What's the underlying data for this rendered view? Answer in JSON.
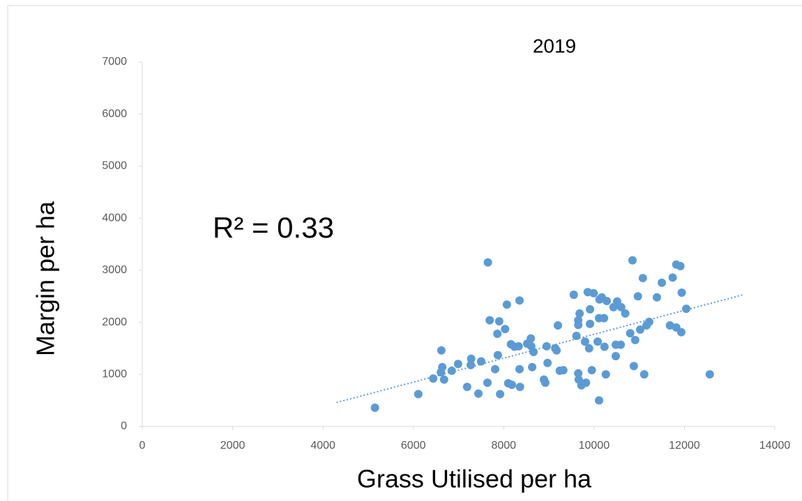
{
  "chart_data": {
    "type": "scatter",
    "title": "2019",
    "x_label": "Grass Utilised per ha",
    "y_label": "Margin per ha",
    "annotation": "R² = 0.33",
    "color": "#5b9bd5",
    "trend_color": "#5b9bd5",
    "xlim": [
      0,
      14000
    ],
    "xticks": [
      0,
      2000,
      4000,
      6000,
      8000,
      10000,
      12000,
      14000
    ],
    "ylim": [
      0,
      7000
    ],
    "yticks": [
      0,
      1000,
      2000,
      3000,
      4000,
      5000,
      6000,
      7000
    ],
    "trendline": {
      "x": [
        4300,
        13300
      ],
      "y": [
        460,
        2530
      ]
    },
    "x": [
      5150,
      6110,
      6620,
      6640,
      6610,
      6680,
      6440,
      6850,
      6990,
      7190,
      7280,
      7270,
      7440,
      7500,
      7640,
      7650,
      7690,
      7810,
      7870,
      7860,
      7900,
      7920,
      8030,
      8070,
      8100,
      8180,
      8160,
      8240,
      8330,
      8350,
      8350,
      8360,
      8520,
      8600,
      8610,
      8660,
      8630,
      8890,
      8920,
      8950,
      8970,
      9140,
      9200,
      9170,
      9240,
      9320,
      9550,
      9610,
      9650,
      9650,
      9650,
      9660,
      9680,
      9720,
      9820,
      9800,
      9860,
      9890,
      9910,
      9910,
      9950,
      9990,
      10080,
      10110,
      10120,
      10110,
      10170,
      10230,
      10220,
      10260,
      10280,
      10430,
      10480,
      10480,
      10510,
      10590,
      10600,
      10690,
      10800,
      10850,
      10880,
      10910,
      10970,
      11020,
      11080,
      11110,
      11160,
      11220,
      11390,
      11500,
      11680,
      11740,
      11820,
      11820,
      11910,
      11930,
      11940,
      12040,
      12560
    ],
    "y": [
      360,
      620,
      1460,
      1140,
      1040,
      900,
      920,
      1070,
      1200,
      760,
      1300,
      1180,
      630,
      1250,
      840,
      3150,
      2040,
      1100,
      1370,
      1780,
      2020,
      620,
      1870,
      2340,
      830,
      800,
      1580,
      1530,
      1540,
      2420,
      1100,
      760,
      1590,
      1690,
      1540,
      1430,
      1140,
      900,
      840,
      1540,
      1220,
      1500,
      1940,
      1460,
      1070,
      1080,
      2530,
      1740,
      2040,
      1950,
      1020,
      900,
      2170,
      790,
      840,
      1630,
      2580,
      1500,
      2250,
      1970,
      1080,
      2560,
      1630,
      500,
      2440,
      2080,
      2480,
      1530,
      2080,
      1000,
      2410,
      2290,
      1570,
      1350,
      2400,
      1570,
      2290,
      2170,
      1790,
      3190,
      1160,
      1660,
      2500,
      1860,
      2850,
      1000,
      1940,
      2010,
      2480,
      2760,
      1940,
      2860,
      3110,
      1900,
      3080,
      1810,
      2570,
      2260,
      1000
    ]
  }
}
